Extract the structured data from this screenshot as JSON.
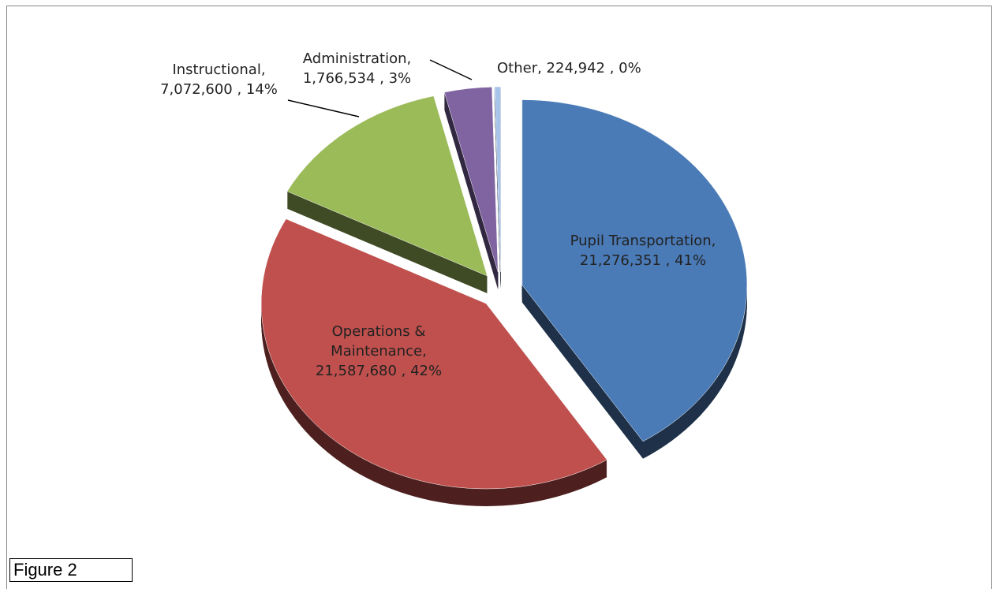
{
  "chart_data": {
    "type": "pie",
    "categories": [
      "Pupil Transportation",
      "Operations & Maintenance",
      "Instructional",
      "Administration",
      "Other"
    ],
    "values": [
      21276351,
      21587680,
      7072600,
      1766534,
      224942
    ],
    "data_labels": [
      "Pupil Transportation, 21,276,351 , 41%",
      "Operations & Maintenance, 21,587,680 , 42%",
      "Instructional, 7,072,600 , 14%",
      "Administration, 1,766,534 , 3%",
      "Other,  224,942 , 0%"
    ],
    "colors": [
      "#4a7bb7",
      "#c0504d",
      "#9bbb59",
      "#8064a2",
      "#a9c4ea"
    ]
  },
  "figure_label": "Figure 2"
}
